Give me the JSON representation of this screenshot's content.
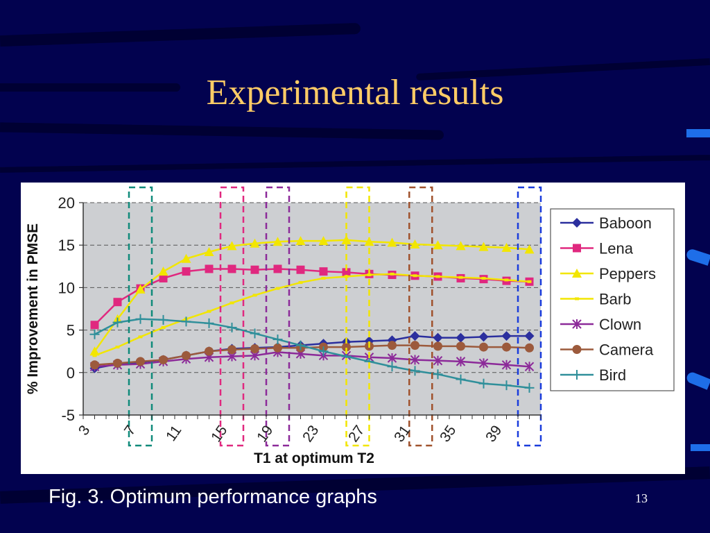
{
  "slide": {
    "title": "Experimental results",
    "caption": "Fig. 3. Optimum performance graphs",
    "page_number": "13",
    "colors": {
      "background": "#02024f",
      "title": "#ffcc66",
      "accent": "#1e6ee8"
    }
  },
  "chart_data": {
    "type": "line",
    "title": "",
    "xlabel": "T1 at optimum T2",
    "ylabel": "% Improvement in PMSE",
    "x": [
      4,
      6,
      8,
      10,
      12,
      14,
      16,
      18,
      20,
      22,
      24,
      26,
      28,
      30,
      32,
      34,
      36,
      38,
      40,
      42
    ],
    "x_tick_labels": [
      "3",
      "7",
      "11",
      "15",
      "19",
      "23",
      "27",
      "31",
      "35",
      "39"
    ],
    "x_tick_values": [
      3,
      7,
      11,
      15,
      19,
      23,
      27,
      31,
      35,
      39
    ],
    "xlim": [
      3,
      43
    ],
    "ylim": [
      -5,
      20
    ],
    "y_ticks": [
      -5,
      0,
      5,
      10,
      15,
      20
    ],
    "grid": "dashed-horizontal",
    "legend_position": "right",
    "series": [
      {
        "name": "Baboon",
        "color": "#2b2f9e",
        "marker": "diamond",
        "values": [
          0.5,
          1.0,
          1.2,
          1.5,
          2.0,
          2.5,
          2.8,
          2.9,
          3.0,
          3.2,
          3.4,
          3.6,
          3.7,
          3.8,
          4.3,
          4.1,
          4.1,
          4.2,
          4.3,
          4.3
        ]
      },
      {
        "name": "Lena",
        "color": "#e0287f",
        "marker": "square",
        "values": [
          5.6,
          8.3,
          9.9,
          11.1,
          11.9,
          12.2,
          12.2,
          12.1,
          12.2,
          12.1,
          11.9,
          11.8,
          11.6,
          11.5,
          11.4,
          11.3,
          11.1,
          11.0,
          10.8,
          10.7
        ]
      },
      {
        "name": "Peppers",
        "color": "#f2e600",
        "marker": "triangle",
        "values": [
          2.5,
          6.3,
          9.8,
          11.9,
          13.4,
          14.2,
          14.9,
          15.2,
          15.4,
          15.5,
          15.5,
          15.6,
          15.4,
          15.3,
          15.1,
          15.0,
          14.9,
          14.8,
          14.7,
          14.5
        ]
      },
      {
        "name": "Barb",
        "color": "#f2e600",
        "marker": "dash",
        "values": [
          2.0,
          3.0,
          4.2,
          5.3,
          6.3,
          7.2,
          8.2,
          9.1,
          9.9,
          10.6,
          11.1,
          11.3,
          11.5,
          11.6,
          11.4,
          11.3,
          11.2,
          11.1,
          10.9,
          10.7
        ]
      },
      {
        "name": "Clown",
        "color": "#8c2a99",
        "marker": "asterisk",
        "values": [
          0.7,
          0.9,
          1.0,
          1.3,
          1.6,
          1.8,
          1.9,
          2.0,
          2.4,
          2.2,
          2.0,
          2.0,
          1.8,
          1.7,
          1.5,
          1.4,
          1.3,
          1.1,
          0.9,
          0.7
        ]
      },
      {
        "name": "Camera",
        "color": "#9c5a3c",
        "marker": "circle",
        "values": [
          0.9,
          1.1,
          1.3,
          1.5,
          2.0,
          2.5,
          2.7,
          2.8,
          2.9,
          2.9,
          3.0,
          3.0,
          3.1,
          3.2,
          3.2,
          3.1,
          3.1,
          3.0,
          3.0,
          2.9
        ]
      },
      {
        "name": "Bird",
        "color": "#2f8f9a",
        "marker": "plus",
        "values": [
          4.5,
          5.9,
          6.3,
          6.2,
          6.0,
          5.8,
          5.3,
          4.6,
          3.9,
          3.2,
          2.5,
          1.9,
          1.3,
          0.7,
          0.2,
          -0.2,
          -0.8,
          -1.3,
          -1.5,
          -1.8
        ]
      }
    ],
    "highlight_boxes": [
      {
        "x_from": 7,
        "x_to": 9,
        "color": "#0f8a7a"
      },
      {
        "x_from": 15,
        "x_to": 17,
        "color": "#e0287f"
      },
      {
        "x_from": 19,
        "x_to": 21,
        "color": "#8c2a99"
      },
      {
        "x_from": 26,
        "x_to": 28,
        "color": "#f2e600"
      },
      {
        "x_from": 31.5,
        "x_to": 33.5,
        "color": "#a0522d"
      },
      {
        "x_from": 41,
        "x_to": 43,
        "color": "#1a3cdc"
      }
    ]
  }
}
